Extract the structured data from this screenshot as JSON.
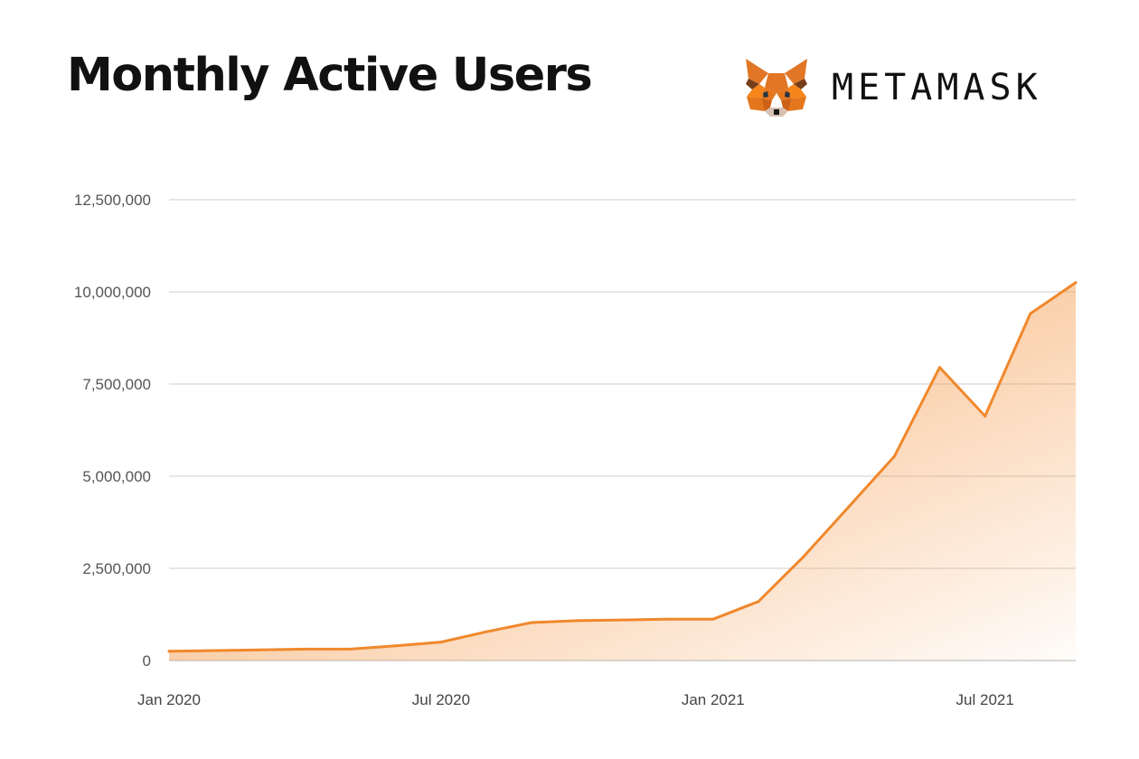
{
  "header": {
    "title": "Monthly Active Users",
    "brand": "METAMASK",
    "logo_icon": "metamask-fox-icon"
  },
  "colors": {
    "line": "#f0882c",
    "fill": "#f59a4b",
    "grid": "#e6e6e6",
    "axis": "#d8d8d8"
  },
  "chart_data": {
    "type": "area",
    "title": "Monthly Active Users",
    "x": [
      "2020-01",
      "2020-02",
      "2020-03",
      "2020-04",
      "2020-05",
      "2020-06",
      "2020-07",
      "2020-08",
      "2020-09",
      "2020-10",
      "2020-11",
      "2020-12",
      "2021-01",
      "2021-02",
      "2021-03",
      "2021-04",
      "2021-05",
      "2021-06",
      "2021-07",
      "2021-08",
      "2021-09"
    ],
    "series": [
      {
        "values": [
          250000,
          270000,
          290000,
          310000,
          310000,
          400000,
          500000,
          780000,
          1030000,
          1080000,
          1100000,
          1120000,
          1120000,
          1600000,
          2820000,
          4180000,
          5540000,
          7950000,
          6630000,
          9410000,
          10250000
        ]
      }
    ],
    "ylim": [
      0,
      12500000
    ],
    "yticks": [
      0,
      2500000,
      5000000,
      7500000,
      10000000,
      12500000
    ],
    "ytick_labels": [
      "0",
      "2,500,000",
      "5,000,000",
      "7,500,000",
      "10,000,000",
      "12,500,000"
    ],
    "xticks": [
      "2020-01",
      "2020-07",
      "2021-01",
      "2021-07"
    ],
    "xtick_labels": [
      "Jan 2020",
      "Jul 2020",
      "Jan 2021",
      "Jul 2021"
    ],
    "grid": true,
    "legend": false
  }
}
